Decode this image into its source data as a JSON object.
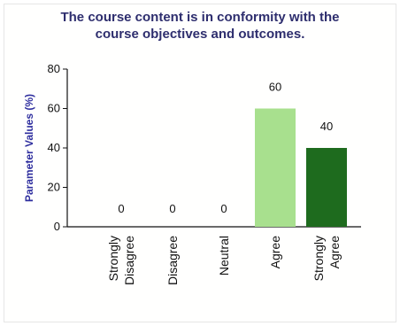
{
  "chart_data": {
    "type": "bar",
    "title_lines": [
      "The course content is in conformity with the",
      "course objectives and outcomes."
    ],
    "ylabel": "Parameter Values (%)",
    "xlabel": "",
    "ylim": [
      0,
      80
    ],
    "yticks": [
      0,
      20,
      40,
      60,
      80
    ],
    "grid": false,
    "categories": [
      [
        "Strongly",
        "Disagree"
      ],
      [
        "Disagree"
      ],
      [
        "Neutral"
      ],
      [
        "Agree"
      ],
      [
        "Strongly",
        "Agree"
      ]
    ],
    "values": [
      0,
      0,
      0,
      60,
      40
    ],
    "data_labels": [
      "0",
      "0",
      "0",
      "60",
      "40"
    ],
    "colors": [
      "#6aa84f",
      "#6aa84f",
      "#6aa84f",
      "#a8e08e",
      "#1e6b1e"
    ]
  }
}
